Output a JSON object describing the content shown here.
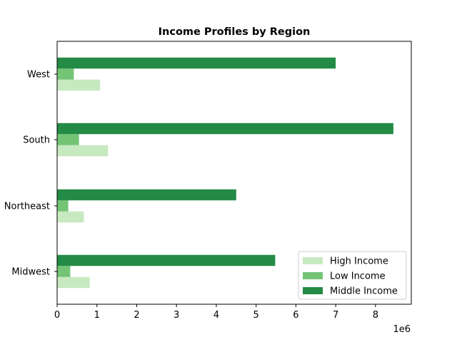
{
  "chart_data": {
    "type": "bar",
    "orientation": "horizontal",
    "title": "Income Profiles by Region",
    "xlabel": "",
    "ylabel": "",
    "x_offset_text": "1e6",
    "categories": [
      "Midwest",
      "Northeast",
      "South",
      "West"
    ],
    "x_ticks": [
      "0",
      "1",
      "2",
      "3",
      "4",
      "5",
      "6",
      "7",
      "8"
    ],
    "xlim": [
      0,
      8.9
    ],
    "value_scale": 1000000,
    "series": [
      {
        "name": "High Income",
        "color": "#c7e9c0",
        "values": [
          820000,
          670000,
          1280000,
          1080000
        ]
      },
      {
        "name": "Low Income",
        "color": "#74c476",
        "values": [
          330000,
          280000,
          550000,
          420000
        ]
      },
      {
        "name": "Middle Income",
        "color": "#238b45",
        "values": [
          5480000,
          4500000,
          8450000,
          7000000
        ]
      }
    ],
    "legend_position": "lower-right",
    "grid": false
  }
}
